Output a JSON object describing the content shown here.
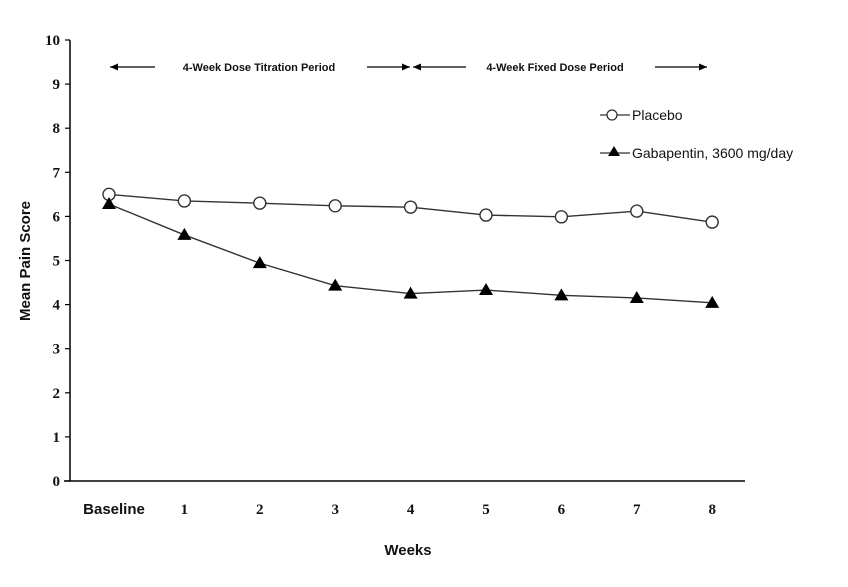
{
  "chart_data": {
    "type": "line",
    "title": "",
    "xlabel": "Weeks",
    "ylabel": "Mean Pain Score",
    "categories": [
      "Baseline",
      "1",
      "2",
      "3",
      "4",
      "5",
      "6",
      "7",
      "8"
    ],
    "ylim": [
      0,
      10
    ],
    "yticks": [
      "0",
      "1",
      "2",
      "3",
      "4",
      "5",
      "6",
      "7",
      "8",
      "9",
      "10"
    ],
    "grid": false,
    "legend_position": "top-right",
    "annotations": {
      "titration": "4-Week Dose Titration Period",
      "fixed": "4-Week Fixed Dose Period"
    },
    "series": [
      {
        "name": "Placebo",
        "marker": "open-circle",
        "values": [
          6.5,
          6.35,
          6.3,
          6.24,
          6.21,
          6.03,
          5.99,
          6.12,
          5.87
        ]
      },
      {
        "name": "Gabapentin, 3600 mg/day",
        "marker": "filled-triangle",
        "values": [
          6.28,
          5.58,
          4.94,
          4.43,
          4.25,
          4.33,
          4.21,
          4.15,
          4.04
        ]
      }
    ],
    "colors": {
      "line": "#333333",
      "marker": "#000000",
      "axis": "#000000"
    }
  }
}
